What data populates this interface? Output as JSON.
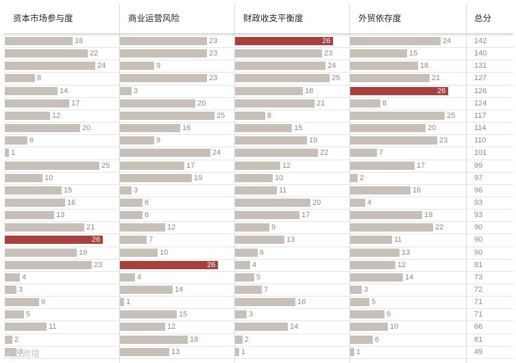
{
  "chart_data": {
    "type": "bar",
    "orientation": "horizontal",
    "title": "",
    "columns": [
      "资本市场参与度",
      "商业运营风险",
      "财政收支平衡度",
      "外贸依存度"
    ],
    "total_label": "总分",
    "series": [
      {
        "name": "资本市场参与度",
        "values": [
          18,
          22,
          24,
          8,
          14,
          17,
          12,
          20,
          6,
          1,
          25,
          10,
          15,
          16,
          13,
          21,
          26,
          19,
          23,
          4,
          3,
          9,
          5,
          11,
          2,
          3
        ],
        "highlight_index": 16
      },
      {
        "name": "商业运营风险",
        "values": [
          23,
          23,
          9,
          23,
          3,
          20,
          25,
          16,
          9,
          24,
          17,
          19,
          3,
          6,
          6,
          12,
          7,
          10,
          26,
          4,
          14,
          1,
          15,
          12,
          18,
          13
        ],
        "highlight_index": 18
      },
      {
        "name": "财政收支平衡度",
        "values": [
          26,
          23,
          24,
          25,
          18,
          21,
          8,
          15,
          19,
          22,
          12,
          10,
          11,
          20,
          17,
          9,
          13,
          6,
          4,
          5,
          7,
          16,
          3,
          14,
          2,
          1
        ],
        "highlight_index": 0
      },
      {
        "name": "外贸依存度",
        "values": [
          24,
          15,
          18,
          21,
          26,
          8,
          25,
          20,
          23,
          7,
          17,
          2,
          16,
          4,
          19,
          22,
          11,
          13,
          12,
          14,
          3,
          5,
          9,
          10,
          6,
          1
        ],
        "highlight_index": 4
      }
    ],
    "totals": [
      142,
      140,
      131,
      127,
      126,
      124,
      117,
      114,
      110,
      101,
      99,
      97,
      96,
      93,
      93,
      90,
      90,
      90,
      81,
      73,
      72,
      71,
      71,
      66,
      61,
      49
    ],
    "value_range": [
      0,
      26
    ],
    "colors": {
      "bar": "#c6c0b9",
      "highlight": "#a8413c"
    }
  },
  "watermark": "大数跨境"
}
